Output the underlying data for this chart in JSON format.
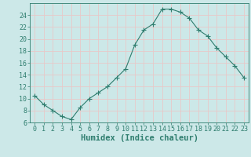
{
  "x": [
    0,
    1,
    2,
    3,
    4,
    5,
    6,
    7,
    8,
    9,
    10,
    11,
    12,
    13,
    14,
    15,
    16,
    17,
    18,
    19,
    20,
    21,
    22,
    23
  ],
  "y": [
    10.5,
    9.0,
    8.0,
    7.0,
    6.5,
    8.5,
    10.0,
    11.0,
    12.0,
    13.5,
    15.0,
    19.0,
    21.5,
    22.5,
    25.0,
    25.0,
    24.5,
    23.5,
    21.5,
    20.5,
    18.5,
    17.0,
    15.5,
    13.5
  ],
  "line_color": "#2e7d6e",
  "marker": "+",
  "marker_size": 4,
  "bg_color": "#cce8e8",
  "grid_color_major": "#e8c8c8",
  "grid_color_minor": "#cce8e8",
  "xlabel": "Humidex (Indice chaleur)",
  "ylim": [
    6,
    26
  ],
  "xlim": [
    -0.5,
    23.5
  ],
  "yticks": [
    6,
    8,
    10,
    12,
    14,
    16,
    18,
    20,
    22,
    24
  ],
  "xticks": [
    0,
    1,
    2,
    3,
    4,
    5,
    6,
    7,
    8,
    9,
    10,
    11,
    12,
    13,
    14,
    15,
    16,
    17,
    18,
    19,
    20,
    21,
    22,
    23
  ],
  "tick_label_fontsize": 6,
  "xlabel_fontsize": 7.5,
  "tick_color": "#2e7d6e",
  "label_color": "#2e7d6e",
  "line_width": 0.8,
  "markeredgewidth": 0.8
}
